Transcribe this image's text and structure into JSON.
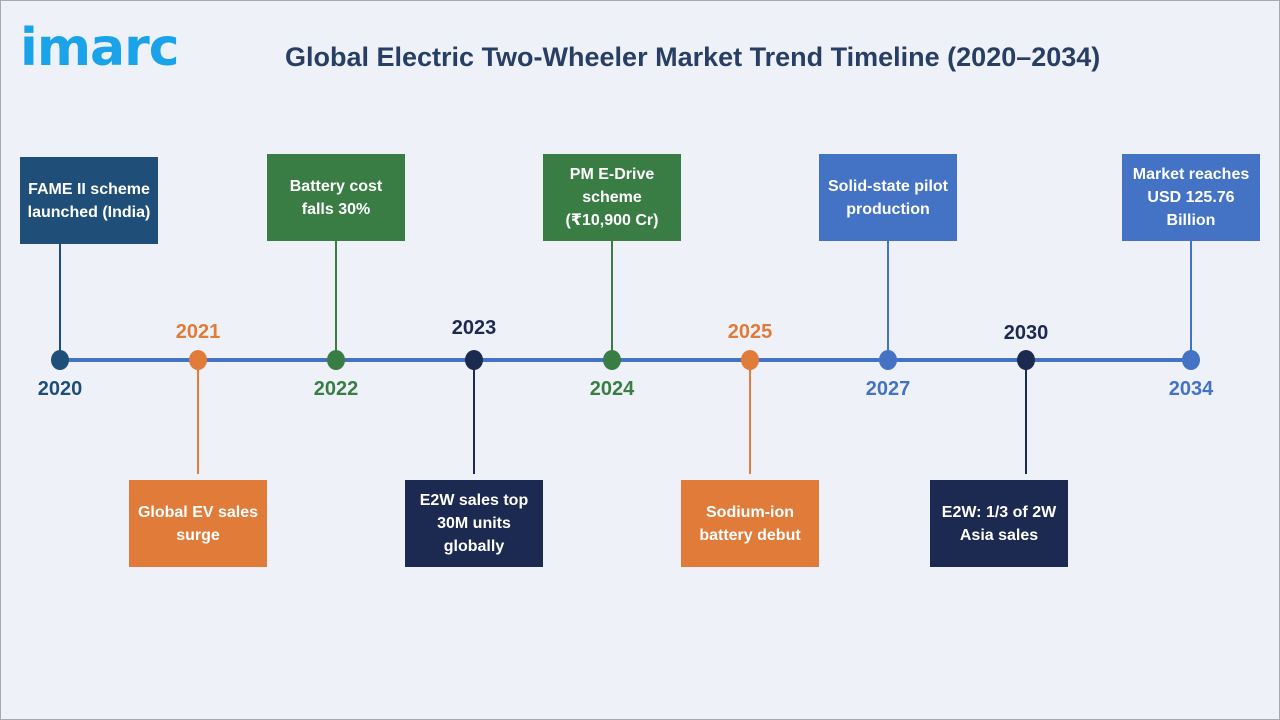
{
  "logo": "imarc",
  "title": "Global Electric Two-Wheeler Market Trend Timeline (2020–2034)",
  "colors": {
    "navy": "#1f4e79",
    "green": "#3a7d44",
    "orange": "#e07b39",
    "dark_navy": "#1c2951",
    "blue": "#4472c4",
    "axis": "#4472c4"
  },
  "events": [
    {
      "year": "2020",
      "text": "FAME II scheme launched (India)",
      "color": "#1f4e79"
    },
    {
      "year": "2021",
      "text": "Global EV sales surge",
      "color": "#e07b39"
    },
    {
      "year": "2022",
      "text": "Battery cost falls 30%",
      "color": "#3a7d44"
    },
    {
      "year": "2023",
      "text": "E2W sales top 30M units globally",
      "color": "#1c2951"
    },
    {
      "year": "2024",
      "text": "PM E-Drive scheme (₹10,900 Cr)",
      "color": "#3a7d44"
    },
    {
      "year": "2025",
      "text": "Sodium-ion battery debut",
      "color": "#e07b39"
    },
    {
      "year": "2027",
      "text": "Solid-state pilot production",
      "color": "#4472c4"
    },
    {
      "year": "2030",
      "text": "E2W: 1/3 of 2W Asia sales",
      "color": "#1c2951"
    },
    {
      "year": "2034",
      "text": "Market reaches USD 125.76 Billion",
      "color": "#4472c4"
    }
  ]
}
